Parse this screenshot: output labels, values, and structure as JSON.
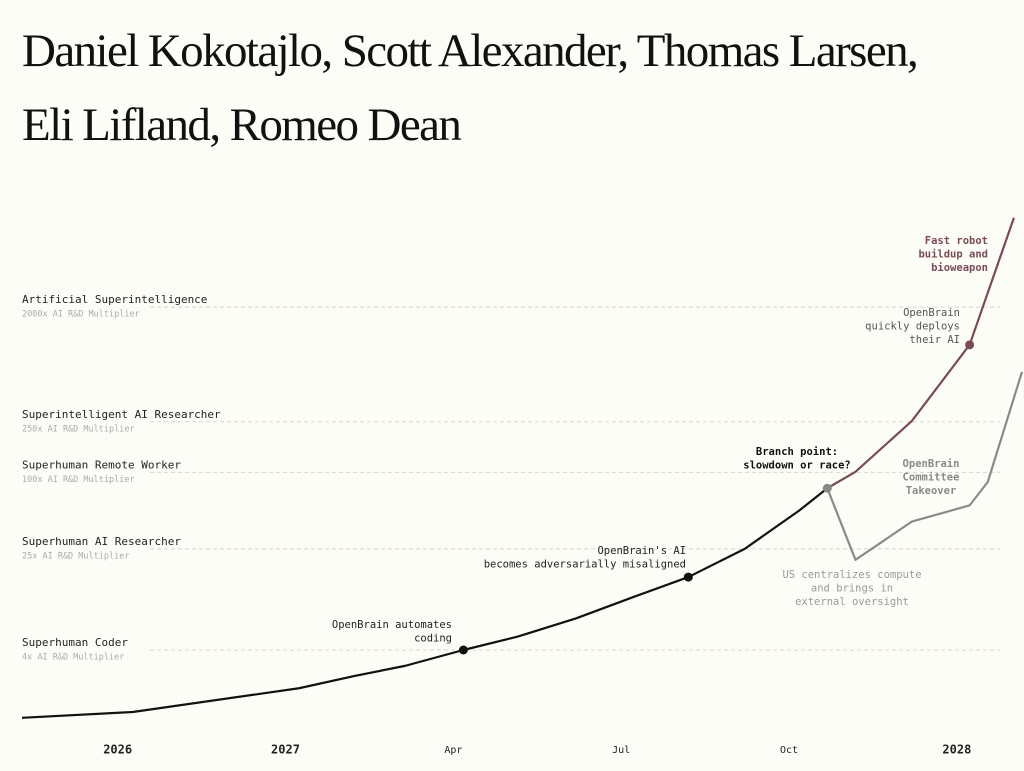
{
  "authors": [
    "Daniel Kokotajlo, Scott Alexander, Thomas Larsen,",
    "Eli Lifland, Romeo Dean"
  ],
  "chart_data": {
    "type": "line",
    "ylog": true,
    "grid": true,
    "xlim": [
      2025.43,
      2028.1
    ],
    "xticks": [
      2026,
      2027,
      {
        "value": 2027.25,
        "label": "Apr"
      },
      {
        "value": 2027.5,
        "label": "Jul"
      },
      {
        "value": 2027.75,
        "label": "Oct"
      },
      2028
    ],
    "ylim": [
      1,
      20000
    ],
    "yticks": [
      {
        "value": 4,
        "label": "Superhuman Coder",
        "note": "4x AI R&D Multiplier"
      },
      {
        "value": 25,
        "label": "Superhuman AI Researcher",
        "note": "25x AI R&D Multiplier"
      },
      {
        "value": 100,
        "label": "Superhuman Remote Worker",
        "note": "100x AI R&D Multiplier"
      },
      {
        "value": 250,
        "label": "Superintelligent AI Researcher",
        "note": "250x AI R&D Multiplier"
      },
      {
        "value": 2000,
        "label": "Artificial Superintelligence",
        "note": "2000x AI R&D Multiplier"
      }
    ],
    "series": [
      {
        "color": "#111111",
        "x": [
          2025.43,
          2026.09,
          2027.02,
          2027.103,
          2027.178,
          2027.265,
          2027.346,
          2027.433,
          2027.515,
          2027.6,
          2027.684,
          2027.765,
          2027.807
        ],
        "values": [
          1.17,
          1.3,
          2.0,
          2.5,
          3.0,
          4,
          5.1,
          7.1,
          10.3,
          15,
          25,
          50,
          75
        ]
      },
      {
        "color": "#7b4b55",
        "x": [
          2027.807,
          2027.849,
          2027.933,
          2028.019,
          2028.085
        ],
        "values": [
          75,
          101,
          254,
          1009,
          10100
        ]
      },
      {
        "color": "#8a8a8a",
        "x": [
          2027.807,
          2027.849,
          2027.933,
          2028.019,
          2028.046,
          2028.097
        ],
        "values": [
          75,
          20.5,
          41,
          55,
          84,
          618
        ]
      }
    ],
    "annotations": [
      {
        "lines": [
          "Branch point:",
          "slowdown or race?"
        ]
      },
      {
        "lines": [
          "OpenBrain automates",
          "coding"
        ]
      },
      {
        "lines": [
          "OpenBrain's AI",
          "becomes adversarially misaligned"
        ]
      },
      {
        "lines": [
          "Fast robot",
          "buildup and",
          "bioweapon"
        ]
      },
      {
        "lines": [
          "OpenBrain",
          "quickly deploys",
          "their AI"
        ]
      },
      {
        "lines": [
          "OpenBrain",
          "Committee",
          "Takeover"
        ]
      },
      {
        "lines": [
          "US centralizes compute",
          "and brings in",
          "external oversight"
        ]
      }
    ]
  }
}
